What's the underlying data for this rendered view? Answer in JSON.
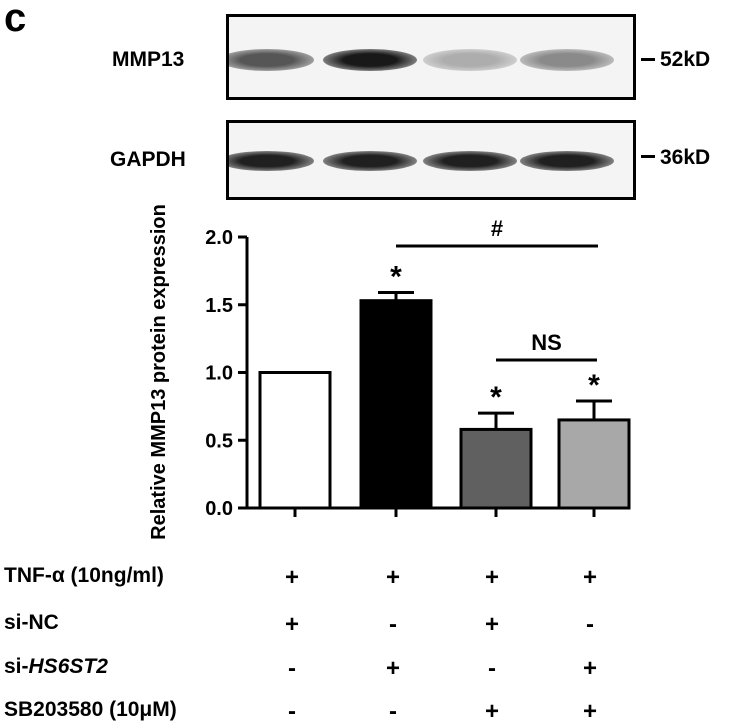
{
  "panel_letter": "c",
  "blots": [
    {
      "label": "MMP13",
      "marker": "52kD",
      "intensities": [
        0.72,
        0.98,
        0.35,
        0.5
      ]
    },
    {
      "label": "GAPDH",
      "marker": "36kD",
      "intensities": [
        0.95,
        0.95,
        0.95,
        0.95
      ]
    }
  ],
  "chart_data": {
    "type": "bar",
    "ylabel": "Relative MMP13 protein expression",
    "xlabel": "",
    "ylim": [
      0,
      2.0
    ],
    "yticks": [
      "0.0",
      "0.5",
      "1.0",
      "1.5",
      "2.0"
    ],
    "categories": [
      "1",
      "2",
      "3",
      "4"
    ],
    "values": [
      1.0,
      1.53,
      0.58,
      0.65
    ],
    "errors": [
      0,
      0.06,
      0.12,
      0.14
    ],
    "bar_colors": [
      "#ffffff",
      "#000000",
      "#606060",
      "#a8a8a8"
    ],
    "significance_marks": [
      "",
      "*",
      "*",
      "*"
    ],
    "comparisons": [
      {
        "from": 1,
        "to": 3,
        "label": "#"
      },
      {
        "from": 2,
        "to": 3,
        "label": "NS"
      }
    ]
  },
  "treatments": [
    {
      "name": "TNF-α (10ng/ml)",
      "italic": "",
      "values": [
        "+",
        "+",
        "+",
        "+"
      ]
    },
    {
      "name": "si-NC",
      "italic": "",
      "values": [
        "+",
        "-",
        "+",
        "-"
      ]
    },
    {
      "name": "si-",
      "italic": "HS6ST2",
      "values": [
        "-",
        "+",
        "-",
        "+"
      ]
    },
    {
      "name": "SB203580 (10μM)",
      "italic": "",
      "values": [
        "-",
        "-",
        "+",
        "+"
      ]
    }
  ]
}
